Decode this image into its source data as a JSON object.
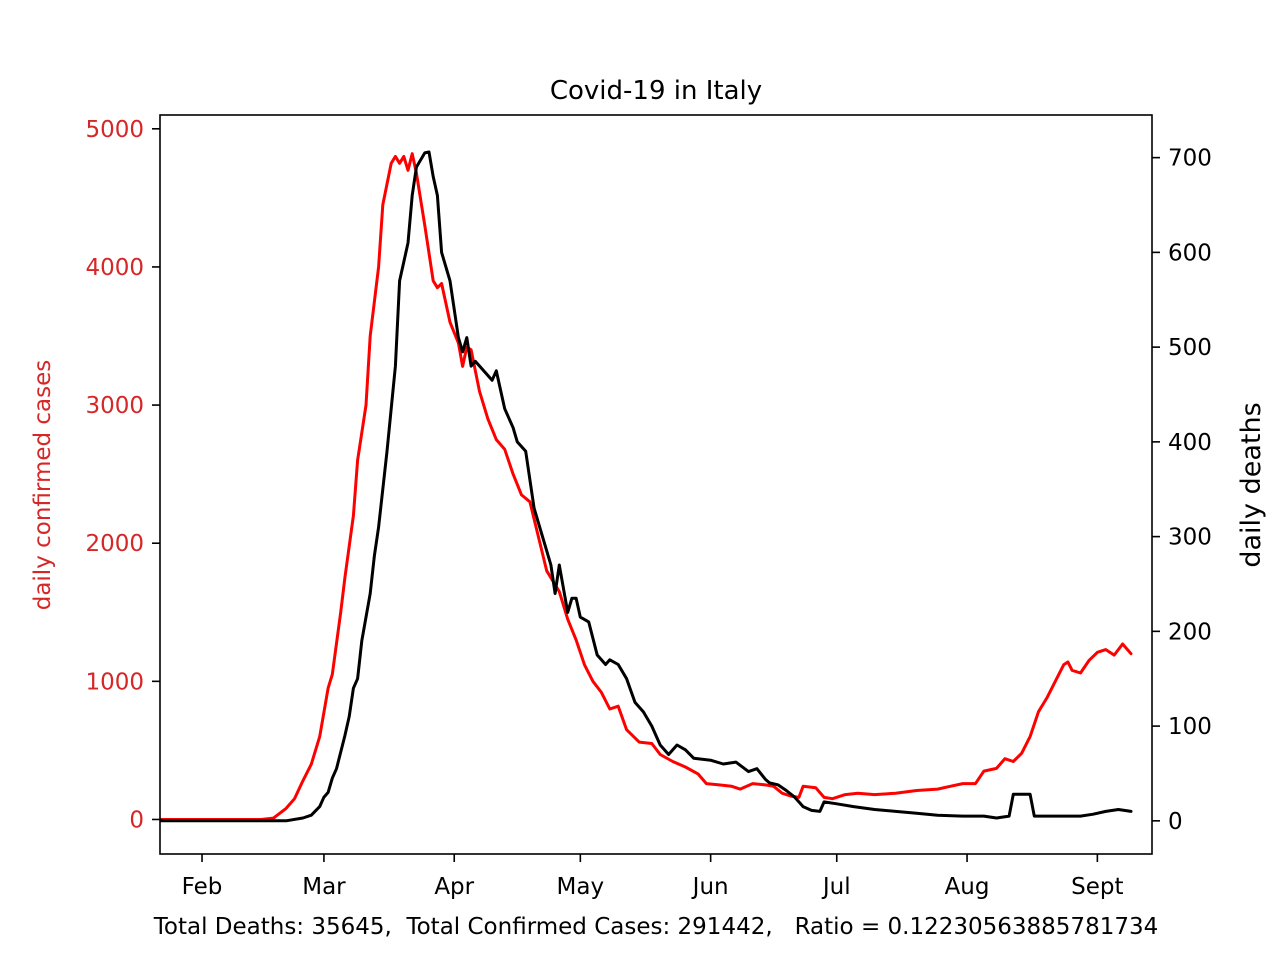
{
  "chart_data": {
    "type": "line",
    "title": "Covid-19 in Italy",
    "ylabel_left": "daily confirmed cases",
    "ylabel_right": "daily deaths",
    "footer": "Total Deaths: 35645,  Total Confirmed Cases: 291442,   Ratio = 0.12230563885781734",
    "xlim": [
      "2020-01-22",
      "2020-09-14"
    ],
    "ylim_left": [
      -250,
      5100
    ],
    "ylim_right": [
      -35,
      745
    ],
    "x_ticks": [
      {
        "label": "Feb",
        "date": "2020-02-01"
      },
      {
        "label": "Mar",
        "date": "2020-03-01"
      },
      {
        "label": "Apr",
        "date": "2020-04-01"
      },
      {
        "label": "May",
        "date": "2020-05-01"
      },
      {
        "label": "Jun",
        "date": "2020-06-01"
      },
      {
        "label": "Jul",
        "date": "2020-07-01"
      },
      {
        "label": "Aug",
        "date": "2020-08-01"
      },
      {
        "label": "Sept",
        "date": "2020-09-01"
      }
    ],
    "left_ticks": [
      0,
      1000,
      2000,
      3000,
      4000,
      5000
    ],
    "right_ticks": [
      0,
      100,
      200,
      300,
      400,
      500,
      600,
      700
    ],
    "grid": false,
    "colors": {
      "cases": "#ff0000",
      "deaths": "#000000",
      "left_axis": "#d62728",
      "axis": "#000000"
    },
    "series": [
      {
        "axis": "left",
        "color": "#ff0000",
        "points": [
          [
            "2020-01-22",
            0
          ],
          [
            "2020-02-15",
            0
          ],
          [
            "2020-02-18",
            10
          ],
          [
            "2020-02-21",
            80
          ],
          [
            "2020-02-23",
            150
          ],
          [
            "2020-02-25",
            280
          ],
          [
            "2020-02-27",
            400
          ],
          [
            "2020-02-29",
            600
          ],
          [
            "2020-03-02",
            950
          ],
          [
            "2020-03-03",
            1050
          ],
          [
            "2020-03-05",
            1500
          ],
          [
            "2020-03-06",
            1750
          ],
          [
            "2020-03-08",
            2200
          ],
          [
            "2020-03-09",
            2600
          ],
          [
            "2020-03-11",
            3000
          ],
          [
            "2020-03-12",
            3500
          ],
          [
            "2020-03-14",
            4000
          ],
          [
            "2020-03-15",
            4450
          ],
          [
            "2020-03-17",
            4750
          ],
          [
            "2020-03-18",
            4800
          ],
          [
            "2020-03-19",
            4750
          ],
          [
            "2020-03-20",
            4800
          ],
          [
            "2020-03-21",
            4700
          ],
          [
            "2020-03-22",
            4820
          ],
          [
            "2020-03-23",
            4680
          ],
          [
            "2020-03-25",
            4300
          ],
          [
            "2020-03-27",
            3900
          ],
          [
            "2020-03-28",
            3850
          ],
          [
            "2020-03-29",
            3880
          ],
          [
            "2020-03-31",
            3600
          ],
          [
            "2020-04-02",
            3450
          ],
          [
            "2020-04-03",
            3280
          ],
          [
            "2020-04-04",
            3420
          ],
          [
            "2020-04-05",
            3400
          ],
          [
            "2020-04-07",
            3100
          ],
          [
            "2020-04-09",
            2900
          ],
          [
            "2020-04-11",
            2750
          ],
          [
            "2020-04-13",
            2680
          ],
          [
            "2020-04-15",
            2500
          ],
          [
            "2020-04-17",
            2350
          ],
          [
            "2020-04-19",
            2300
          ],
          [
            "2020-04-21",
            2050
          ],
          [
            "2020-04-23",
            1800
          ],
          [
            "2020-04-26",
            1650
          ],
          [
            "2020-04-28",
            1450
          ],
          [
            "2020-04-30",
            1300
          ],
          [
            "2020-05-02",
            1120
          ],
          [
            "2020-05-04",
            1000
          ],
          [
            "2020-05-06",
            920
          ],
          [
            "2020-05-08",
            800
          ],
          [
            "2020-05-10",
            820
          ],
          [
            "2020-05-12",
            650
          ],
          [
            "2020-05-15",
            560
          ],
          [
            "2020-05-18",
            550
          ],
          [
            "2020-05-20",
            470
          ],
          [
            "2020-05-23",
            420
          ],
          [
            "2020-05-26",
            380
          ],
          [
            "2020-05-29",
            330
          ],
          [
            "2020-05-31",
            260
          ],
          [
            "2020-06-03",
            250
          ],
          [
            "2020-06-06",
            240
          ],
          [
            "2020-06-08",
            220
          ],
          [
            "2020-06-11",
            260
          ],
          [
            "2020-06-14",
            250
          ],
          [
            "2020-06-16",
            240
          ],
          [
            "2020-06-18",
            190
          ],
          [
            "2020-06-20",
            170
          ],
          [
            "2020-06-22",
            160
          ],
          [
            "2020-06-23",
            240
          ],
          [
            "2020-06-26",
            230
          ],
          [
            "2020-06-28",
            160
          ],
          [
            "2020-06-30",
            150
          ],
          [
            "2020-07-03",
            180
          ],
          [
            "2020-07-06",
            190
          ],
          [
            "2020-07-10",
            180
          ],
          [
            "2020-07-15",
            190
          ],
          [
            "2020-07-20",
            210
          ],
          [
            "2020-07-25",
            220
          ],
          [
            "2020-07-28",
            240
          ],
          [
            "2020-07-31",
            260
          ],
          [
            "2020-08-03",
            260
          ],
          [
            "2020-08-05",
            350
          ],
          [
            "2020-08-08",
            370
          ],
          [
            "2020-08-10",
            440
          ],
          [
            "2020-08-12",
            420
          ],
          [
            "2020-08-14",
            480
          ],
          [
            "2020-08-16",
            600
          ],
          [
            "2020-08-18",
            780
          ],
          [
            "2020-08-20",
            880
          ],
          [
            "2020-08-22",
            1000
          ],
          [
            "2020-08-24",
            1120
          ],
          [
            "2020-08-25",
            1140
          ],
          [
            "2020-08-26",
            1080
          ],
          [
            "2020-08-28",
            1060
          ],
          [
            "2020-08-30",
            1150
          ],
          [
            "2020-09-01",
            1210
          ],
          [
            "2020-09-03",
            1230
          ],
          [
            "2020-09-05",
            1190
          ],
          [
            "2020-09-07",
            1270
          ],
          [
            "2020-09-09",
            1200
          ]
        ]
      },
      {
        "axis": "right",
        "color": "#000000",
        "points": [
          [
            "2020-01-22",
            0
          ],
          [
            "2020-02-21",
            0
          ],
          [
            "2020-02-25",
            3
          ],
          [
            "2020-02-27",
            6
          ],
          [
            "2020-02-29",
            15
          ],
          [
            "2020-03-01",
            25
          ],
          [
            "2020-03-02",
            30
          ],
          [
            "2020-03-03",
            45
          ],
          [
            "2020-03-04",
            55
          ],
          [
            "2020-03-06",
            90
          ],
          [
            "2020-03-07",
            110
          ],
          [
            "2020-03-08",
            140
          ],
          [
            "2020-03-09",
            150
          ],
          [
            "2020-03-10",
            190
          ],
          [
            "2020-03-12",
            240
          ],
          [
            "2020-03-13",
            280
          ],
          [
            "2020-03-14",
            310
          ],
          [
            "2020-03-16",
            390
          ],
          [
            "2020-03-18",
            480
          ],
          [
            "2020-03-19",
            570
          ],
          [
            "2020-03-20",
            590
          ],
          [
            "2020-03-21",
            610
          ],
          [
            "2020-03-22",
            660
          ],
          [
            "2020-03-23",
            690
          ],
          [
            "2020-03-25",
            705
          ],
          [
            "2020-03-26",
            706
          ],
          [
            "2020-03-27",
            680
          ],
          [
            "2020-03-28",
            660
          ],
          [
            "2020-03-29",
            600
          ],
          [
            "2020-03-31",
            570
          ],
          [
            "2020-04-01",
            540
          ],
          [
            "2020-04-02",
            510
          ],
          [
            "2020-04-03",
            495
          ],
          [
            "2020-04-04",
            510
          ],
          [
            "2020-04-05",
            480
          ],
          [
            "2020-04-06",
            485
          ],
          [
            "2020-04-08",
            475
          ],
          [
            "2020-04-10",
            465
          ],
          [
            "2020-04-11",
            475
          ],
          [
            "2020-04-12",
            455
          ],
          [
            "2020-04-13",
            435
          ],
          [
            "2020-04-15",
            415
          ],
          [
            "2020-04-16",
            400
          ],
          [
            "2020-04-18",
            390
          ],
          [
            "2020-04-20",
            330
          ],
          [
            "2020-04-22",
            300
          ],
          [
            "2020-04-24",
            270
          ],
          [
            "2020-04-25",
            240
          ],
          [
            "2020-04-26",
            270
          ],
          [
            "2020-04-28",
            220
          ],
          [
            "2020-04-29",
            235
          ],
          [
            "2020-04-30",
            235
          ],
          [
            "2020-05-01",
            215
          ],
          [
            "2020-05-03",
            210
          ],
          [
            "2020-05-05",
            175
          ],
          [
            "2020-05-07",
            165
          ],
          [
            "2020-05-08",
            170
          ],
          [
            "2020-05-10",
            165
          ],
          [
            "2020-05-12",
            150
          ],
          [
            "2020-05-14",
            125
          ],
          [
            "2020-05-16",
            115
          ],
          [
            "2020-05-18",
            100
          ],
          [
            "2020-05-20",
            80
          ],
          [
            "2020-05-22",
            70
          ],
          [
            "2020-05-24",
            80
          ],
          [
            "2020-05-26",
            75
          ],
          [
            "2020-05-28",
            66
          ],
          [
            "2020-06-01",
            64
          ],
          [
            "2020-06-04",
            60
          ],
          [
            "2020-06-07",
            62
          ],
          [
            "2020-06-10",
            52
          ],
          [
            "2020-06-12",
            55
          ],
          [
            "2020-06-14",
            44
          ],
          [
            "2020-06-15",
            40
          ],
          [
            "2020-06-17",
            38
          ],
          [
            "2020-06-19",
            32
          ],
          [
            "2020-06-21",
            25
          ],
          [
            "2020-06-22",
            20
          ],
          [
            "2020-06-23",
            15
          ],
          [
            "2020-06-25",
            11
          ],
          [
            "2020-06-27",
            10
          ],
          [
            "2020-06-28",
            20
          ],
          [
            "2020-07-01",
            18
          ],
          [
            "2020-07-05",
            15
          ],
          [
            "2020-07-10",
            12
          ],
          [
            "2020-07-15",
            10
          ],
          [
            "2020-07-20",
            8
          ],
          [
            "2020-07-25",
            6
          ],
          [
            "2020-07-31",
            5
          ],
          [
            "2020-08-05",
            5
          ],
          [
            "2020-08-08",
            3
          ],
          [
            "2020-08-11",
            5
          ],
          [
            "2020-08-12",
            28
          ],
          [
            "2020-08-15",
            28
          ],
          [
            "2020-08-16",
            28
          ],
          [
            "2020-08-17",
            5
          ],
          [
            "2020-08-22",
            5
          ],
          [
            "2020-08-28",
            5
          ],
          [
            "2020-08-31",
            7
          ],
          [
            "2020-09-03",
            10
          ],
          [
            "2020-09-06",
            12
          ],
          [
            "2020-09-09",
            10
          ]
        ]
      }
    ]
  }
}
